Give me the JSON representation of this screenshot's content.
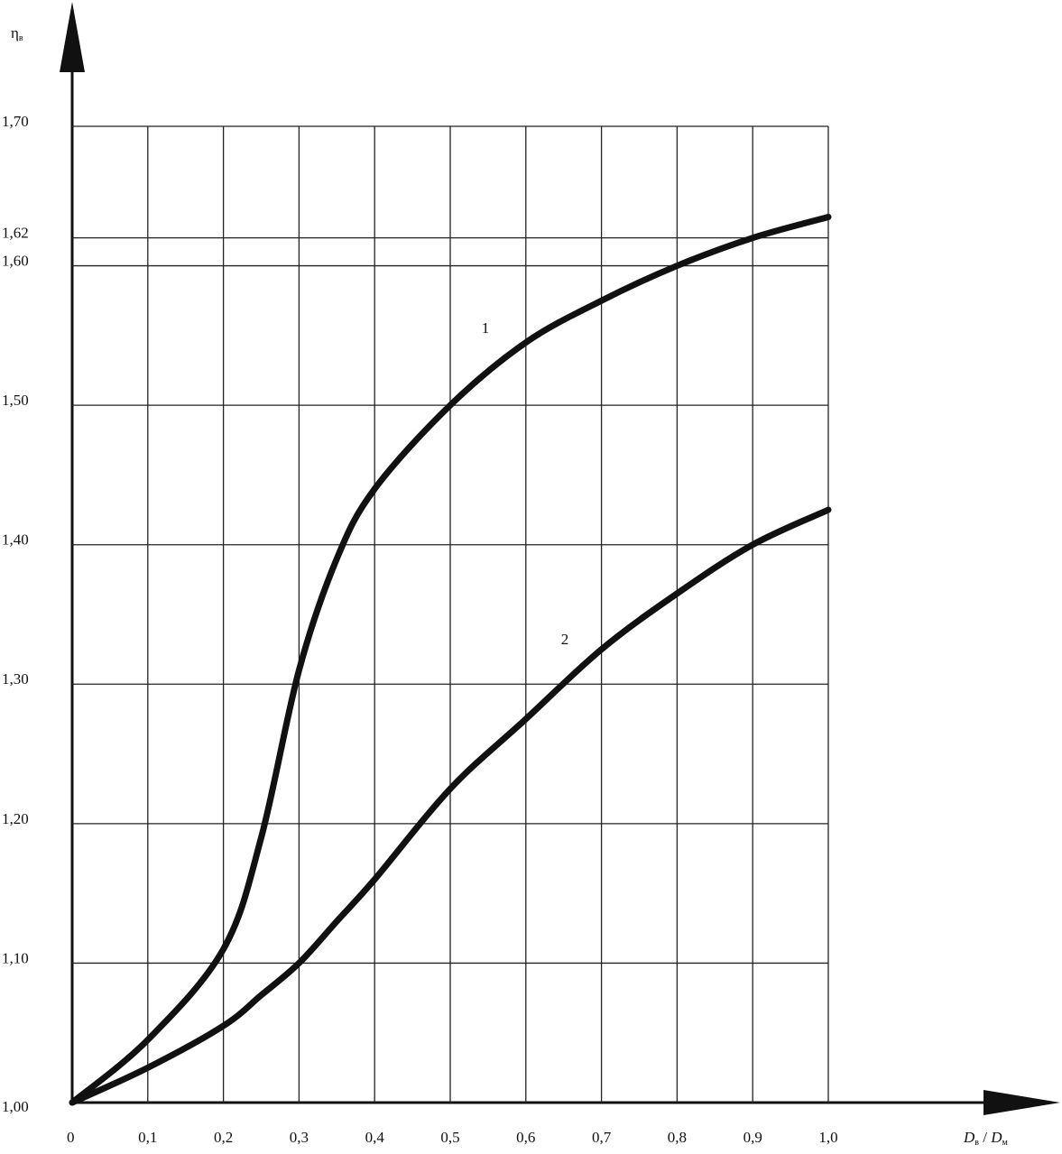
{
  "chart_data": {
    "type": "line",
    "x_label": {
      "main": "D",
      "sub1": "в",
      "sep": " / ",
      "main2": "D",
      "sub2": "м"
    },
    "y_label": {
      "main": "η",
      "sub": "в"
    },
    "x": [
      0,
      0.1,
      0.2,
      0.25,
      0.3,
      0.35,
      0.4,
      0.5,
      0.6,
      0.7,
      0.8,
      0.9,
      1.0
    ],
    "series": [
      {
        "name": "1",
        "color": "#111111",
        "values": [
          1.0,
          1.045,
          1.11,
          1.19,
          1.31,
          1.39,
          1.44,
          1.5,
          1.545,
          1.575,
          1.6,
          1.62,
          1.635
        ]
      },
      {
        "name": "2",
        "color": "#111111",
        "values": [
          1.0,
          1.025,
          1.055,
          1.077,
          1.1,
          1.13,
          1.16,
          1.225,
          1.275,
          1.325,
          1.365,
          1.4,
          1.425
        ]
      }
    ],
    "xlim": [
      0,
      1.0
    ],
    "ylim": [
      1.0,
      1.7
    ],
    "xticks": [
      0,
      {
        "value": 0.1,
        "label": "0,1"
      },
      {
        "value": 0.2,
        "label": "0,2"
      },
      {
        "value": 0.3,
        "label": "0,3"
      },
      {
        "value": 0.4,
        "label": "0,4"
      },
      {
        "value": 0.5,
        "label": "0,5"
      },
      {
        "value": 0.6,
        "label": "0,6"
      },
      {
        "value": 0.7,
        "label": "0,7"
      },
      {
        "value": 0.8,
        "label": "0,8"
      },
      {
        "value": 0.9,
        "label": "0,9"
      },
      {
        "value": 1.0,
        "label": "1,0"
      }
    ],
    "yticks": [
      {
        "value": 1.0,
        "label": "1,00"
      },
      {
        "value": 1.1,
        "label": "1,10"
      },
      {
        "value": 1.2,
        "label": "1,20"
      },
      {
        "value": 1.3,
        "label": "1,30"
      },
      {
        "value": 1.4,
        "label": "1,40"
      },
      {
        "value": 1.5,
        "label": "1,50"
      },
      {
        "value": 1.6,
        "label": "1,60"
      },
      {
        "value": 1.62,
        "label": "1,62"
      },
      {
        "value": 1.7,
        "label": "1,70"
      }
    ],
    "grid": true
  }
}
